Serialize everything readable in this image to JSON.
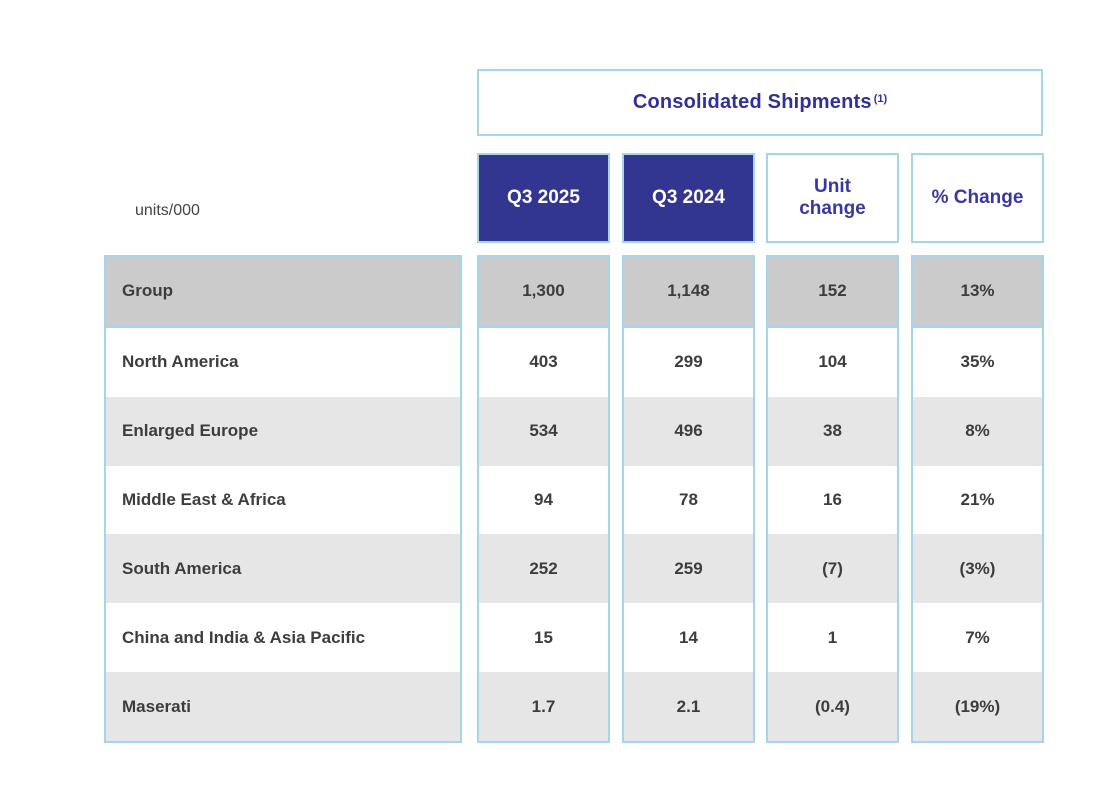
{
  "meta": {
    "units_label": "units/000"
  },
  "colors": {
    "header_navy_bg": "#333690",
    "header_blue_text": "#3a38a0",
    "title_blue_text": "#30309a",
    "light_blue_border": "#a6d4ea",
    "row_group_gray": "#cbcbcb",
    "row_alt_gray": "#e6e6e6",
    "body_text": "#3d3d3d"
  },
  "chart_data": {
    "type": "table",
    "title": "Consolidated Shipments",
    "title_footnote_marker": "(1)",
    "units_label": "units/000",
    "columns": [
      "Q3 2025",
      "Q3 2024",
      "Unit change",
      "% Change"
    ],
    "rows": [
      {
        "label": "Group",
        "values": [
          "1,300",
          "1,148",
          "152",
          "13%"
        ]
      },
      {
        "label": "North America",
        "values": [
          "403",
          "299",
          "104",
          "35%"
        ]
      },
      {
        "label": "Enlarged Europe",
        "values": [
          "534",
          "496",
          "38",
          "8%"
        ]
      },
      {
        "label": "Middle East & Africa",
        "values": [
          "94",
          "78",
          "16",
          "21%"
        ]
      },
      {
        "label": "South America",
        "values": [
          "252",
          "259",
          "(7)",
          "(3%)"
        ]
      },
      {
        "label": "China and India & Asia Pacific",
        "values": [
          "15",
          "14",
          "1",
          "7%"
        ]
      },
      {
        "label": "Maserati",
        "values": [
          "1.7",
          "2.1",
          "(0.4)",
          "(19%)"
        ]
      }
    ]
  }
}
